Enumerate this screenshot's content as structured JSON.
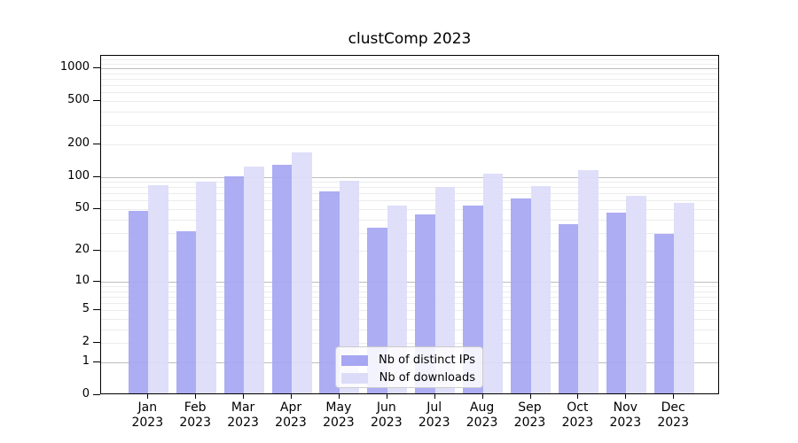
{
  "title": "clustComp 2023",
  "figure": {
    "background": "#ffffff"
  },
  "colors": {
    "ips_bar": "#a6a6f2",
    "downloads_bar": "#dcdcf9",
    "major_gridline": "#bdbdbd",
    "minor_gridline": "#ececec",
    "axis": "#000000",
    "legend_border": "#cccccc"
  },
  "legend": {
    "items": [
      {
        "label": "Nb of distinct IPs",
        "color_key": "ips_bar"
      },
      {
        "label": "Nb of downloads",
        "color_key": "downloads_bar"
      }
    ]
  },
  "y_axis": {
    "tick_labels": [
      "1000",
      "500",
      "200",
      "100",
      "50",
      "20",
      "10",
      "5",
      "2",
      "1",
      "0"
    ],
    "tick_values": [
      1000,
      500,
      200,
      100,
      50,
      20,
      10,
      5,
      2,
      1,
      0
    ]
  },
  "x_axis": {
    "tick_labels": [
      "Jan 2023",
      "Feb 2023",
      "Mar 2023",
      "Apr 2023",
      "May 2023",
      "Jun 2023",
      "Jul 2023",
      "Aug 2023",
      "Sep 2023",
      "Oct 2023",
      "Nov 2023",
      "Dec 2023"
    ]
  },
  "chart_data": {
    "type": "bar",
    "title": "clustComp 2023",
    "categories": [
      "Jan 2023",
      "Feb 2023",
      "Mar 2023",
      "Apr 2023",
      "May 2023",
      "Jun 2023",
      "Jul 2023",
      "Aug 2023",
      "Sep 2023",
      "Oct 2023",
      "Nov 2023",
      "Dec 2023"
    ],
    "series": [
      {
        "name": "Nb of distinct IPs",
        "color_key": "ips_bar",
        "values": [
          46,
          30,
          98,
          124,
          70,
          32,
          43,
          52,
          60,
          35,
          45,
          28
        ]
      },
      {
        "name": "Nb of downloads",
        "color_key": "downloads_bar",
        "values": [
          80,
          87,
          120,
          162,
          88,
          52,
          78,
          103,
          79,
          112,
          64,
          55
        ]
      }
    ],
    "xlabel": "",
    "ylabel": "",
    "yscale": "log10(value+1)",
    "ylim": [
      0,
      1274
    ],
    "yticks": [
      0,
      1,
      2,
      5,
      10,
      20,
      50,
      100,
      200,
      500,
      1000
    ],
    "major_gridlines": [
      1,
      10,
      100,
      1000
    ],
    "minor_gridlines": [
      2,
      3,
      4,
      5,
      6,
      7,
      8,
      9,
      20,
      30,
      40,
      50,
      60,
      70,
      80,
      90,
      200,
      300,
      400,
      500,
      600,
      700,
      800,
      900,
      1100,
      1200
    ],
    "grid": true,
    "legend_position": "lower center"
  }
}
